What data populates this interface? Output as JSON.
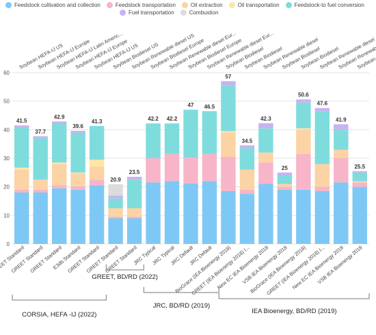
{
  "chart_data": {
    "type": "bar",
    "stacked": true,
    "ylim": [
      0,
      60
    ],
    "yticks": [
      0,
      10,
      20,
      30,
      40,
      50,
      60
    ],
    "grid": true,
    "legend_placement": "top",
    "categories_top": [
      "Soybean HEFA-IJ US",
      "Soybean HEFA-IJ Europe",
      "Soybean HEFA-IJ Latin Americ...",
      "Soybean HEFA-IJ Europe",
      "Soybean HEFA-IJ US",
      "Soybean Biodiesel US",
      "Soybean Renewable diesel US",
      "Soybean Biodiesel Europe",
      "Soybean Renewable diesel Eur...",
      "Soybean Biodiesel Europe",
      "Soybean Renewable diesel Eur...",
      "Soybean Biodiesel",
      "Soybean Biodiesel",
      "Soybean Renewable diesel",
      "Soybean Biodiesel",
      "Soybean Biodiesel",
      "Soybean Renewable diesel",
      "Soybean Renewable diesel",
      "Soybean Renewable diesel"
    ],
    "categories_bottom": [
      "GREET Standard",
      "GREET Standard",
      "GREET Standard",
      "E3db Standard",
      "GREET Standard",
      "GREET Standard",
      "GREET Standard",
      "JRC Typical",
      "JRC Typical",
      "JRC Default",
      "JRC Default",
      "BioGrace (IEA Bioenergy 2018)",
      "GREET (IEA Bioenergy 2018) I...",
      "New EC  IEA Bioenergy 2018",
      "VSB IEA Bioenergy 2018",
      "BioGrace (IEA Bioenergy 2018)",
      "GREET (IEA Bioenergy 2018) I...",
      "New EC  IEA Bioenergy 2018",
      "VSB IEA Bioenergy 2018"
    ],
    "totals": [
      41.5,
      37.7,
      42.9,
      39.6,
      41.3,
      20.9,
      23.5,
      42.2,
      42.2,
      47,
      46.5,
      57,
      34.5,
      42.3,
      25,
      50.6,
      47.6,
      41.9,
      25.5
    ],
    "series": [
      {
        "name": "Feedstock cultivation and collection",
        "color": "#7ec8f5",
        "values": [
          18,
          18,
          19.5,
          19,
          20.5,
          9,
          9,
          21.5,
          22,
          21.2,
          22,
          18.5,
          17.5,
          21,
          19,
          19,
          18.5,
          21.5,
          20
        ]
      },
      {
        "name": "Feedstock transportation",
        "color": "#f8b4c8",
        "values": [
          1,
          1,
          1,
          1.2,
          2,
          0.5,
          0.5,
          8.5,
          9.5,
          9,
          9.5,
          12,
          1.5,
          7.5,
          1,
          12.5,
          1.5,
          8.5,
          1.5
        ]
      },
      {
        "name": "Oil extraction",
        "color": "#fbd3a4",
        "values": [
          7,
          3.5,
          7.5,
          4.5,
          4.5,
          3,
          3,
          0,
          0,
          0,
          0,
          8.5,
          7,
          3.5,
          1,
          8.5,
          8,
          3,
          0.5
        ]
      },
      {
        "name": "Oil transportation",
        "color": "#fce6a8",
        "values": [
          0.7,
          0,
          0.5,
          0.3,
          2.5,
          0,
          0,
          0,
          0,
          0,
          0,
          0.5,
          0,
          0,
          0,
          0.5,
          0,
          0,
          0
        ]
      },
      {
        "name": "Feedstock-to fuel conversion",
        "color": "#7fdcdc",
        "values": [
          14,
          14.5,
          13.5,
          13.9,
          11.8,
          3.4,
          10,
          12.2,
          10.7,
          16.8,
          15,
          16,
          7.5,
          8.5,
          3,
          9,
          18.5,
          7,
          3
        ]
      },
      {
        "name": "Fuel transportation",
        "color": "#c7b3f0",
        "values": [
          0.8,
          0.7,
          0.9,
          0.7,
          0,
          1,
          1,
          0,
          0,
          0,
          0,
          1.5,
          1,
          1.8,
          1,
          1.1,
          1.1,
          1.9,
          0.5
        ]
      },
      {
        "name": "Combustion",
        "color": "#dcdcdc",
        "values": [
          0,
          0,
          0,
          0,
          0,
          4,
          0,
          0,
          0,
          0,
          0,
          0,
          0,
          0,
          0,
          0,
          0,
          0,
          0
        ]
      }
    ],
    "groups": [
      {
        "label": "CORSIA, HEFA -IJ (2022)",
        "start": 0,
        "end": 4
      },
      {
        "label": "GREET, BD/RD (2022)",
        "start": 5,
        "end": 6
      },
      {
        "label": "JRC, BD/RD (2019)",
        "start": 7,
        "end": 10
      },
      {
        "label": "IEA Bioenergy, BD/RD (2019)",
        "start": 11,
        "end": 18
      }
    ]
  }
}
